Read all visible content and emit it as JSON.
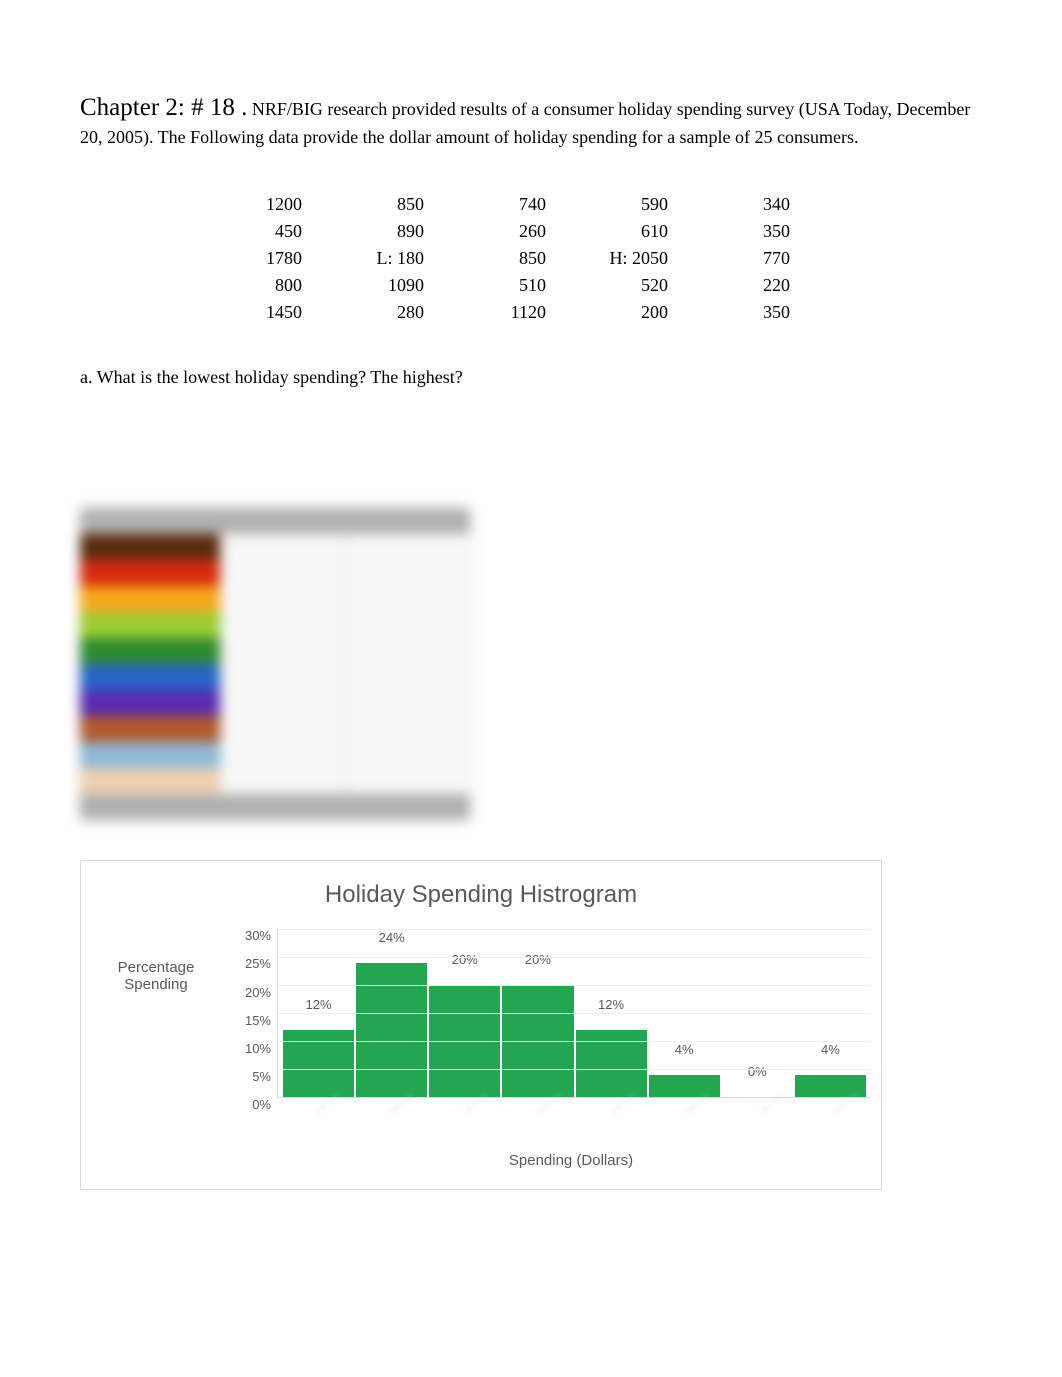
{
  "heading": {
    "title": "Chapter 2: # 18 .",
    "body": " NRF/BIG research provided results of a consumer holiday spending survey (USA Today, December 20, 2005). The Following data provide the dollar amount of holiday spending for a sample of 25 consumers."
  },
  "data_table": {
    "rows": [
      [
        "1200",
        "850",
        "740",
        "590",
        "340"
      ],
      [
        "450",
        "890",
        "260",
        "610",
        "350"
      ],
      [
        "1780",
        "L: 180",
        "850",
        "H: 2050",
        "770"
      ],
      [
        "800",
        "1090",
        "510",
        "520",
        "220"
      ],
      [
        "1450",
        "280",
        "1120",
        "200",
        "350"
      ]
    ]
  },
  "question_a": "a. What is the lowest holiday spending? The highest?",
  "blurred_table": {
    "row_colors": [
      "#5a2b0f",
      "#d62b0f",
      "#f7a81b",
      "#9acd32",
      "#2e8b2e",
      "#2864c8",
      "#5a2bb0",
      "#b05a2b",
      "#8fb8d8",
      "#f0d0b0"
    ]
  },
  "chart": {
    "type": "bar",
    "title": "Holiday Spending Histrogram",
    "y_axis_title": "Percentage Spending",
    "x_axis_title": "Spending (Dollars)",
    "ylim_max": 30,
    "ytick_step": 5,
    "yticks": [
      "30%",
      "25%",
      "20%",
      "15%",
      "10%",
      "5%",
      "0%"
    ],
    "bar_color": "#22a652",
    "grid_color": "#efefef",
    "background_color": "#ffffff",
    "title_color": "#595959",
    "label_color": "#595959",
    "categories": [
      "",
      "",
      "",
      "",
      "",
      "",
      "",
      ""
    ],
    "values": [
      12,
      24,
      20,
      20,
      12,
      4,
      0,
      4
    ],
    "value_labels": [
      "12%",
      "24%",
      "20%",
      "20%",
      "12%",
      "4%",
      "0%",
      "4%"
    ]
  }
}
